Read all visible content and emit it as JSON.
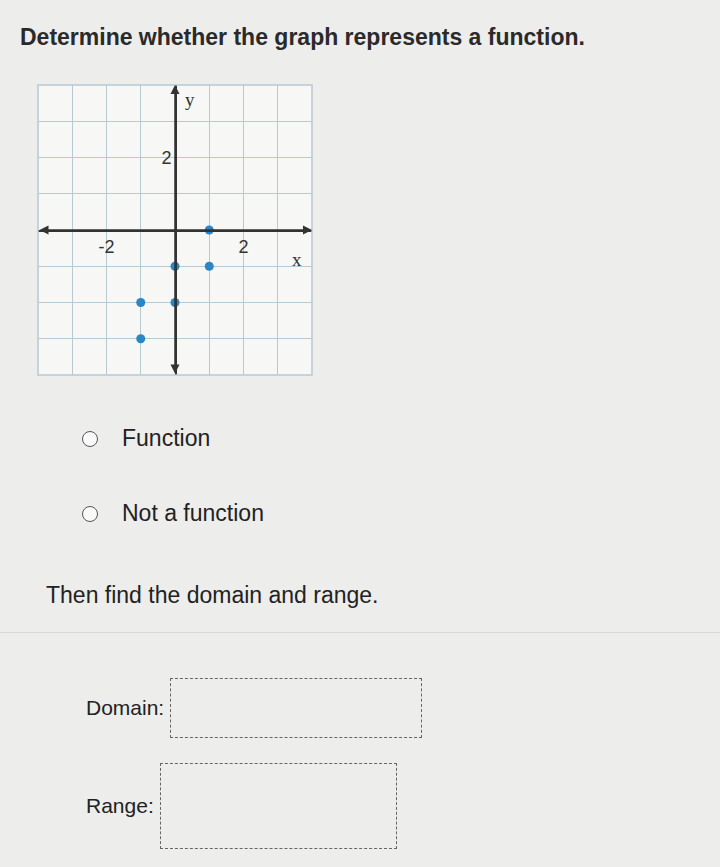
{
  "title": "Determine whether the graph represents a function.",
  "chart_data": {
    "type": "scatter",
    "x": [
      1,
      0,
      1,
      -1,
      0,
      -1
    ],
    "values": [
      0,
      -1,
      -1,
      -2,
      -2,
      -3
    ],
    "color": "#2a86c4",
    "marker": "circle",
    "xlim": [
      -4,
      4
    ],
    "ylim": [
      -4,
      4
    ],
    "xticks": [
      -2,
      2
    ],
    "yticks": [
      2
    ],
    "grid": true,
    "x_label": "x",
    "y_label": "y"
  },
  "options": [
    "Function",
    "Not a function"
  ],
  "prompt": "Then find the domain and range.",
  "fields": [
    "Domain:",
    "Range:"
  ]
}
